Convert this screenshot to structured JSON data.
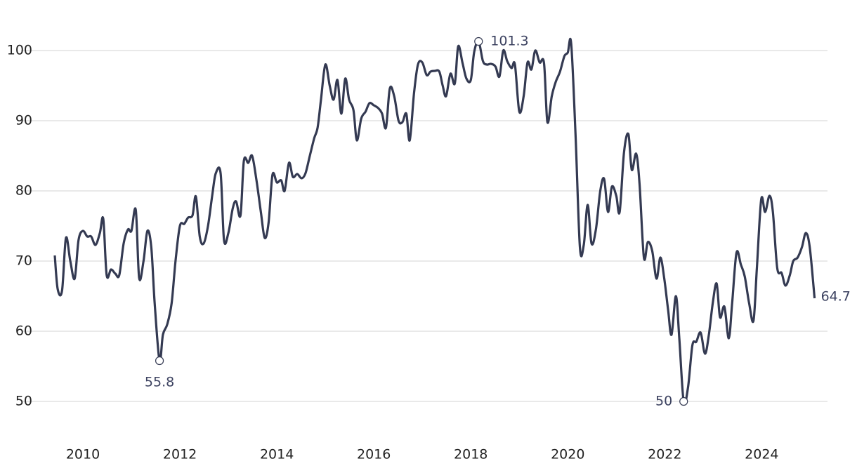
{
  "chart_data": {
    "type": "line",
    "x": [
      2009.42,
      2009.48,
      2009.57,
      2009.65,
      2009.74,
      2009.83,
      2009.91,
      2010.0,
      2010.09,
      2010.17,
      2010.26,
      2010.35,
      2010.42,
      2010.49,
      2010.58,
      2010.67,
      2010.75,
      2010.84,
      2010.93,
      2011.0,
      2011.09,
      2011.16,
      2011.25,
      2011.33,
      2011.41,
      2011.48,
      2011.58,
      2011.65,
      2011.74,
      2011.83,
      2011.91,
      2012.0,
      2012.09,
      2012.17,
      2012.26,
      2012.33,
      2012.41,
      2012.49,
      2012.58,
      2012.67,
      2012.74,
      2012.84,
      2012.91,
      2013.0,
      2013.09,
      2013.16,
      2013.25,
      2013.32,
      2013.41,
      2013.49,
      2013.58,
      2013.67,
      2013.75,
      2013.83,
      2013.91,
      2014.0,
      2014.09,
      2014.16,
      2014.25,
      2014.33,
      2014.42,
      2014.51,
      2014.59,
      2014.68,
      2014.77,
      2014.84,
      2014.91,
      2015.0,
      2015.09,
      2015.17,
      2015.25,
      2015.33,
      2015.41,
      2015.49,
      2015.58,
      2015.65,
      2015.74,
      2015.83,
      2015.91,
      2016.0,
      2016.09,
      2016.17,
      2016.25,
      2016.33,
      2016.42,
      2016.51,
      2016.59,
      2016.67,
      2016.74,
      2016.83,
      2016.91,
      2017.0,
      2017.09,
      2017.17,
      2017.26,
      2017.35,
      2017.42,
      2017.49,
      2017.58,
      2017.67,
      2017.74,
      2017.83,
      2017.91,
      2018.0,
      2018.07,
      2018.16,
      2018.25,
      2018.33,
      2018.42,
      2018.51,
      2018.59,
      2018.67,
      2018.75,
      2018.84,
      2018.91,
      2019.0,
      2019.09,
      2019.17,
      2019.25,
      2019.33,
      2019.42,
      2019.51,
      2019.58,
      2019.67,
      2019.75,
      2019.84,
      2019.93,
      2020.0,
      2020.07,
      2020.16,
      2020.25,
      2020.33,
      2020.41,
      2020.49,
      2020.58,
      2020.67,
      2020.75,
      2020.83,
      2020.91,
      2021.0,
      2021.07,
      2021.16,
      2021.25,
      2021.32,
      2021.41,
      2021.48,
      2021.57,
      2021.65,
      2021.74,
      2021.83,
      2021.91,
      2021.99,
      2022.07,
      2022.14,
      2022.23,
      2022.3,
      2022.39,
      2022.48,
      2022.57,
      2022.65,
      2022.74,
      2022.83,
      2022.91,
      2022.99,
      2023.07,
      2023.14,
      2023.23,
      2023.32,
      2023.39,
      2023.48,
      2023.57,
      2023.65,
      2023.74,
      2023.83,
      2023.9,
      2023.99,
      2024.07,
      2024.16,
      2024.23,
      2024.32,
      2024.41,
      2024.49,
      2024.58,
      2024.65,
      2024.74,
      2024.83,
      2024.91,
      2024.99,
      2025.09
    ],
    "series": [
      {
        "color": "#343a52",
        "values": [
          70.8,
          66,
          65.8,
          73.3,
          70,
          67.5,
          73,
          74.3,
          73.5,
          73.5,
          72.3,
          74,
          76,
          68,
          68.8,
          68.2,
          68,
          72.5,
          74.5,
          74.3,
          77.3,
          67.6,
          70,
          74.3,
          72,
          64,
          55.8,
          59.5,
          61,
          64,
          70,
          75,
          75.3,
          76.2,
          76.5,
          79.2,
          73.5,
          72.5,
          75,
          79.5,
          82.5,
          82.5,
          73,
          74,
          77.5,
          78.5,
          76.5,
          84.3,
          84,
          85,
          81.5,
          77,
          73.3,
          75.5,
          82.3,
          81.2,
          81.5,
          80,
          84,
          82,
          82.4,
          81.8,
          82.5,
          85,
          87.5,
          89,
          93,
          98,
          95,
          93,
          95.8,
          91,
          96,
          93,
          91.5,
          87.2,
          90.3,
          91.3,
          92.5,
          92.2,
          91.8,
          91,
          89,
          94.6,
          93.5,
          90,
          89.8,
          91,
          87.2,
          94,
          98,
          98.3,
          96.5,
          97,
          97.1,
          97,
          95,
          93.5,
          96.7,
          95.3,
          100.6,
          98.2,
          96,
          95.8,
          99.8,
          101.3,
          98.5,
          98,
          98.1,
          97.7,
          96.3,
          100,
          98.5,
          97.5,
          98,
          91.3,
          93.5,
          98.3,
          97.3,
          100,
          98.3,
          98.2,
          89.8,
          93.5,
          95.5,
          97,
          99.2,
          99.7,
          101,
          88,
          72,
          72.3,
          78,
          72.5,
          74.5,
          80,
          81.7,
          77,
          80.6,
          79.3,
          77,
          85.5,
          88.1,
          83,
          85.3,
          81,
          70.5,
          72.7,
          71.5,
          67.5,
          70.5,
          67.5,
          63,
          59.5,
          65,
          59,
          50,
          52,
          58,
          58.5,
          59.8,
          56.8,
          59.5,
          64,
          66.8,
          62,
          63.5,
          59,
          64,
          71.2,
          69.5,
          67.8,
          64,
          61.5,
          69,
          78.8,
          77,
          79.3,
          77,
          69,
          68.3,
          66.5,
          68,
          70,
          70.5,
          72,
          74,
          72,
          64.7
        ]
      }
    ],
    "xlim": [
      2009.0,
      2025.4
    ],
    "xticks": [
      2010,
      2012,
      2014,
      2016,
      2018,
      2020,
      2022,
      2024
    ],
    "ylim": [
      45,
      105
    ],
    "yticks": [
      50,
      60,
      70,
      80,
      90,
      100
    ],
    "grid": true
  }
}
